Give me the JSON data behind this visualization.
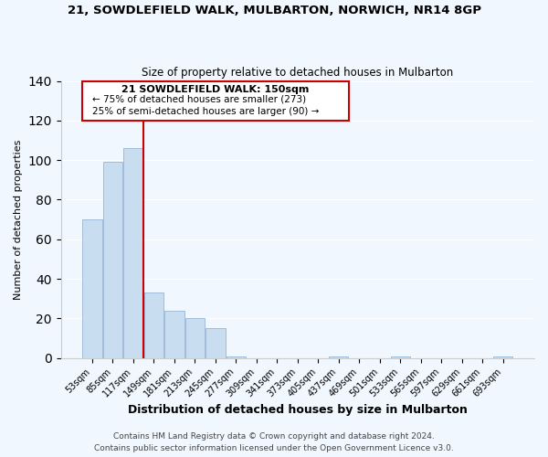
{
  "title": "21, SOWDLEFIELD WALK, MULBARTON, NORWICH, NR14 8GP",
  "subtitle": "Size of property relative to detached houses in Mulbarton",
  "xlabel": "Distribution of detached houses by size in Mulbarton",
  "ylabel": "Number of detached properties",
  "bar_color": "#c8ddf0",
  "bar_edge_color": "#a0bcd8",
  "categories": [
    "53sqm",
    "85sqm",
    "117sqm",
    "149sqm",
    "181sqm",
    "213sqm",
    "245sqm",
    "277sqm",
    "309sqm",
    "341sqm",
    "373sqm",
    "405sqm",
    "437sqm",
    "469sqm",
    "501sqm",
    "533sqm",
    "565sqm",
    "597sqm",
    "629sqm",
    "661sqm",
    "693sqm"
  ],
  "values": [
    70,
    99,
    106,
    33,
    24,
    20,
    15,
    1,
    0,
    0,
    0,
    0,
    1,
    0,
    0,
    1,
    0,
    0,
    0,
    0,
    1
  ],
  "ylim": [
    0,
    140
  ],
  "yticks": [
    0,
    20,
    40,
    60,
    80,
    100,
    120,
    140
  ],
  "vline_color": "#cc0000",
  "box_text_line1": "21 SOWDLEFIELD WALK: 150sqm",
  "box_text_line2": "← 75% of detached houses are smaller (273)",
  "box_text_line3": "25% of semi-detached houses are larger (90) →",
  "box_color": "white",
  "box_edge_color": "#cc0000",
  "footer_line1": "Contains HM Land Registry data © Crown copyright and database right 2024.",
  "footer_line2": "Contains public sector information licensed under the Open Government Licence v3.0.",
  "background_color": "#f0f7ff"
}
